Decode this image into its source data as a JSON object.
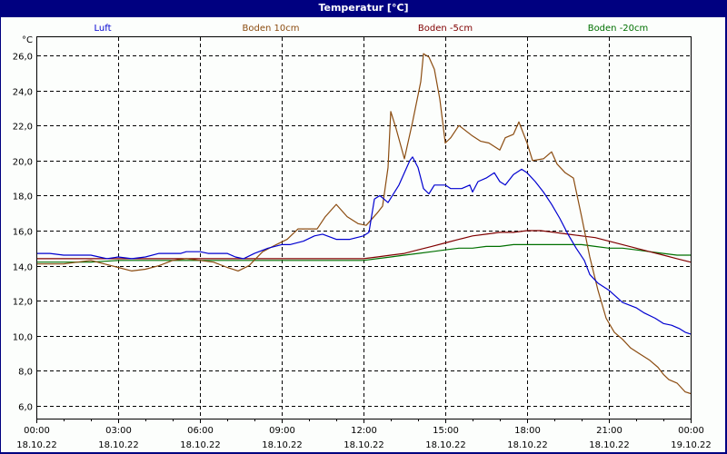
{
  "window": {
    "title": "Temperatur [°C]"
  },
  "chart_data": {
    "type": "line",
    "title": "Temperatur [°C]",
    "xlabel": "",
    "ylabel": "°C",
    "ylim": [
      5.2,
      27.1
    ],
    "grid": true,
    "legend_position": "top",
    "y_ticks": [
      "26,0",
      "24,0",
      "22,0",
      "20,0",
      "18,0",
      "16,0",
      "14,0",
      "12,0",
      "10,0",
      "8,0",
      "6,0"
    ],
    "y_tick_values": [
      26,
      24,
      22,
      20,
      18,
      16,
      14,
      12,
      10,
      8,
      6
    ],
    "x_ticks": [
      {
        "time": "00:00",
        "date": "18.10.22"
      },
      {
        "time": "03:00",
        "date": "18.10.22"
      },
      {
        "time": "06:00",
        "date": "18.10.22"
      },
      {
        "time": "09:00",
        "date": "18.10.22"
      },
      {
        "time": "12:00",
        "date": "18.10.22"
      },
      {
        "time": "15:00",
        "date": "18.10.22"
      },
      {
        "time": "18:00",
        "date": "18.10.22"
      },
      {
        "time": "21:00",
        "date": "18.10.22"
      },
      {
        "time": "00:00",
        "date": "19.10.22"
      }
    ],
    "x_unit": "hours since 18.10.22 00:00",
    "series": [
      {
        "name": "Luft",
        "color": "#0000d0",
        "points": [
          [
            0,
            14.7
          ],
          [
            0.5,
            14.7
          ],
          [
            1,
            14.6
          ],
          [
            2,
            14.6
          ],
          [
            2.3,
            14.5
          ],
          [
            2.6,
            14.4
          ],
          [
            3,
            14.5
          ],
          [
            3.5,
            14.4
          ],
          [
            4,
            14.5
          ],
          [
            4.5,
            14.7
          ],
          [
            5,
            14.7
          ],
          [
            5.3,
            14.7
          ],
          [
            5.5,
            14.8
          ],
          [
            6,
            14.8
          ],
          [
            6.3,
            14.7
          ],
          [
            7,
            14.7
          ],
          [
            7.3,
            14.5
          ],
          [
            7.6,
            14.4
          ],
          [
            8,
            14.7
          ],
          [
            8.5,
            15.0
          ],
          [
            9,
            15.2
          ],
          [
            9.3,
            15.2
          ],
          [
            9.8,
            15.4
          ],
          [
            10.2,
            15.7
          ],
          [
            10.5,
            15.8
          ],
          [
            11,
            15.5
          ],
          [
            11.5,
            15.5
          ],
          [
            12,
            15.7
          ],
          [
            12.2,
            15.9
          ],
          [
            12.4,
            17.8
          ],
          [
            12.6,
            18.0
          ],
          [
            12.9,
            17.6
          ],
          [
            13.3,
            18.6
          ],
          [
            13.7,
            20.0
          ],
          [
            13.8,
            20.2
          ],
          [
            14.0,
            19.6
          ],
          [
            14.2,
            18.4
          ],
          [
            14.4,
            18.1
          ],
          [
            14.6,
            18.6
          ],
          [
            15,
            18.6
          ],
          [
            15.2,
            18.4
          ],
          [
            15.6,
            18.4
          ],
          [
            15.9,
            18.6
          ],
          [
            16.0,
            18.2
          ],
          [
            16.2,
            18.8
          ],
          [
            16.5,
            19.0
          ],
          [
            16.8,
            19.3
          ],
          [
            17,
            18.8
          ],
          [
            17.2,
            18.6
          ],
          [
            17.5,
            19.2
          ],
          [
            17.8,
            19.5
          ],
          [
            18.0,
            19.3
          ],
          [
            18.3,
            18.8
          ],
          [
            18.6,
            18.2
          ],
          [
            18.9,
            17.5
          ],
          [
            19.2,
            16.7
          ],
          [
            19.5,
            15.8
          ],
          [
            19.8,
            15.0
          ],
          [
            20.1,
            14.3
          ],
          [
            20.3,
            13.5
          ],
          [
            20.6,
            13.0
          ],
          [
            21.0,
            12.6
          ],
          [
            21.5,
            11.9
          ],
          [
            22.0,
            11.6
          ],
          [
            22.3,
            11.3
          ],
          [
            22.7,
            11.0
          ],
          [
            23.0,
            10.7
          ],
          [
            23.3,
            10.6
          ],
          [
            23.6,
            10.4
          ],
          [
            23.8,
            10.2
          ],
          [
            24.0,
            10.1
          ]
        ]
      },
      {
        "name": "Boden 10cm",
        "color": "#8b4c10",
        "points": [
          [
            0,
            14.1
          ],
          [
            1,
            14.1
          ],
          [
            1.5,
            14.2
          ],
          [
            2,
            14.3
          ],
          [
            2.5,
            14.1
          ],
          [
            3,
            13.9
          ],
          [
            3.5,
            13.7
          ],
          [
            4,
            13.8
          ],
          [
            4.5,
            14.0
          ],
          [
            5,
            14.3
          ],
          [
            5.5,
            14.4
          ],
          [
            6,
            14.3
          ],
          [
            6.5,
            14.2
          ],
          [
            7,
            13.9
          ],
          [
            7.4,
            13.7
          ],
          [
            7.8,
            14.0
          ],
          [
            8.3,
            14.8
          ],
          [
            8.8,
            15.2
          ],
          [
            9.2,
            15.5
          ],
          [
            9.6,
            16.1
          ],
          [
            10,
            16.1
          ],
          [
            10.3,
            16.1
          ],
          [
            10.6,
            16.8
          ],
          [
            11.0,
            17.5
          ],
          [
            11.4,
            16.8
          ],
          [
            11.8,
            16.4
          ],
          [
            12.1,
            16.3
          ],
          [
            12.5,
            17.0
          ],
          [
            12.7,
            17.4
          ],
          [
            12.9,
            19.6
          ],
          [
            13.0,
            22.8
          ],
          [
            13.2,
            21.8
          ],
          [
            13.5,
            20.1
          ],
          [
            13.8,
            22.2
          ],
          [
            14.1,
            24.5
          ],
          [
            14.2,
            26.1
          ],
          [
            14.4,
            25.9
          ],
          [
            14.6,
            25.2
          ],
          [
            14.8,
            23.5
          ],
          [
            15.0,
            21.0
          ],
          [
            15.2,
            21.3
          ],
          [
            15.5,
            22.0
          ],
          [
            16.0,
            21.4
          ],
          [
            16.3,
            21.1
          ],
          [
            16.6,
            21.0
          ],
          [
            17.0,
            20.6
          ],
          [
            17.2,
            21.3
          ],
          [
            17.5,
            21.5
          ],
          [
            17.7,
            22.2
          ],
          [
            18.0,
            21.0
          ],
          [
            18.2,
            20.0
          ],
          [
            18.6,
            20.1
          ],
          [
            18.9,
            20.5
          ],
          [
            19.1,
            19.8
          ],
          [
            19.4,
            19.3
          ],
          [
            19.7,
            19.0
          ],
          [
            20.0,
            16.8
          ],
          [
            20.3,
            14.5
          ],
          [
            20.6,
            12.6
          ],
          [
            20.9,
            11.0
          ],
          [
            21.2,
            10.2
          ],
          [
            21.5,
            9.8
          ],
          [
            21.8,
            9.3
          ],
          [
            22.1,
            9.0
          ],
          [
            22.5,
            8.6
          ],
          [
            22.8,
            8.2
          ],
          [
            23.0,
            7.8
          ],
          [
            23.2,
            7.5
          ],
          [
            23.5,
            7.3
          ],
          [
            23.8,
            6.8
          ],
          [
            24.0,
            6.7
          ]
        ]
      },
      {
        "name": "Boden -5cm",
        "color": "#800000",
        "points": [
          [
            0,
            14.4
          ],
          [
            1,
            14.4
          ],
          [
            2,
            14.4
          ],
          [
            3,
            14.4
          ],
          [
            4,
            14.4
          ],
          [
            5,
            14.4
          ],
          [
            6,
            14.4
          ],
          [
            7,
            14.4
          ],
          [
            8,
            14.4
          ],
          [
            9,
            14.4
          ],
          [
            10,
            14.4
          ],
          [
            11,
            14.4
          ],
          [
            12,
            14.4
          ],
          [
            12.5,
            14.5
          ],
          [
            13,
            14.6
          ],
          [
            13.5,
            14.7
          ],
          [
            14,
            14.9
          ],
          [
            14.5,
            15.1
          ],
          [
            15,
            15.3
          ],
          [
            15.5,
            15.5
          ],
          [
            16,
            15.7
          ],
          [
            16.5,
            15.8
          ],
          [
            17,
            15.9
          ],
          [
            17.5,
            15.9
          ],
          [
            18,
            16.0
          ],
          [
            18.5,
            16.0
          ],
          [
            19,
            15.9
          ],
          [
            19.5,
            15.8
          ],
          [
            20,
            15.7
          ],
          [
            20.5,
            15.6
          ],
          [
            21,
            15.4
          ],
          [
            21.5,
            15.2
          ],
          [
            22,
            15.0
          ],
          [
            22.5,
            14.8
          ],
          [
            23,
            14.6
          ],
          [
            23.5,
            14.4
          ],
          [
            24,
            14.2
          ]
        ]
      },
      {
        "name": "Boden -20cm",
        "color": "#007000",
        "points": [
          [
            0,
            14.2
          ],
          [
            1,
            14.2
          ],
          [
            2,
            14.2
          ],
          [
            3,
            14.3
          ],
          [
            4,
            14.3
          ],
          [
            5,
            14.3
          ],
          [
            6,
            14.3
          ],
          [
            7,
            14.3
          ],
          [
            8,
            14.3
          ],
          [
            9,
            14.3
          ],
          [
            10,
            14.3
          ],
          [
            11,
            14.3
          ],
          [
            12,
            14.3
          ],
          [
            12.5,
            14.4
          ],
          [
            13,
            14.5
          ],
          [
            13.5,
            14.6
          ],
          [
            14,
            14.7
          ],
          [
            14.5,
            14.8
          ],
          [
            15,
            14.9
          ],
          [
            15.5,
            15.0
          ],
          [
            16,
            15.0
          ],
          [
            16.5,
            15.1
          ],
          [
            17,
            15.1
          ],
          [
            17.5,
            15.2
          ],
          [
            18,
            15.2
          ],
          [
            18.5,
            15.2
          ],
          [
            19,
            15.2
          ],
          [
            19.5,
            15.2
          ],
          [
            20,
            15.2
          ],
          [
            20.5,
            15.1
          ],
          [
            21,
            15.0
          ],
          [
            21.5,
            15.0
          ],
          [
            22,
            14.9
          ],
          [
            22.5,
            14.8
          ],
          [
            23,
            14.7
          ],
          [
            23.5,
            14.6
          ],
          [
            24,
            14.6
          ]
        ]
      }
    ]
  }
}
